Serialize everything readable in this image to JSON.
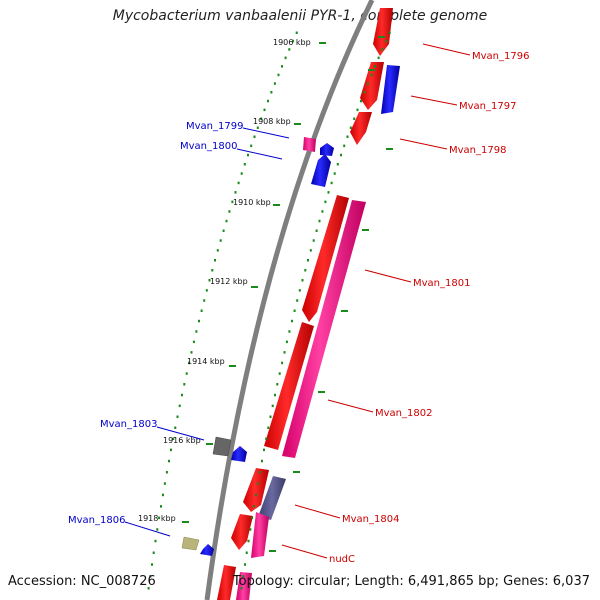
{
  "title": "Mycobacterium vanbaalenii PYR-1, complete genome",
  "footer": {
    "accession": "Accession: NC_008726",
    "summary": "Topology: circular; Length: 6,491,865 bp; Genes: 6,037"
  },
  "colors": {
    "backbone": "#7f7f7f",
    "tick": "#1a8a1a",
    "forward_label": "#cc0000",
    "reverse_label": "#0000cc",
    "red": "#ff1a1a",
    "pink": "#ff3399",
    "blue": "#1a1aff",
    "slate": "#55558a",
    "gray": "#666666",
    "khaki": "#b8b47a"
  },
  "scale_labels": [
    "1906 kbp",
    "1908 kbp",
    "1910 kbp",
    "1912 kbp",
    "1914 kbp",
    "1916 kbp",
    "1918 kbp"
  ],
  "gene_labels": {
    "forward": [
      "Mvan_1796",
      "Mvan_1797",
      "Mvan_1798",
      "Mvan_1801",
      "Mvan_1802",
      "Mvan_1804",
      "nudC"
    ],
    "reverse": [
      "Mvan_1799",
      "Mvan_1800",
      "Mvan_1803",
      "Mvan_1806"
    ]
  }
}
